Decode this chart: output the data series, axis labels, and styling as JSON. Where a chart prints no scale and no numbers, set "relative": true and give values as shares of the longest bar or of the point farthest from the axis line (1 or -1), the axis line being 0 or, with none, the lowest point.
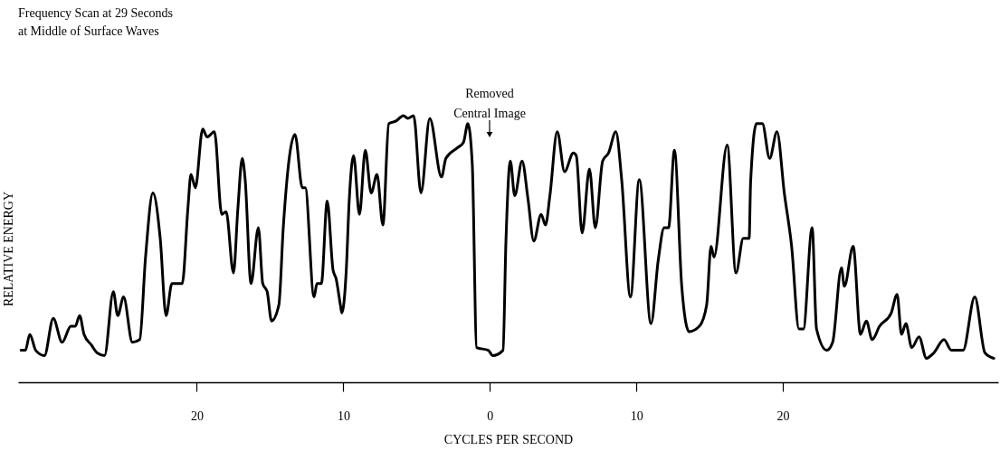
{
  "chart_data": {
    "type": "line",
    "title": "Frequency Scan at 29 Seconds at Middle of Surface Waves",
    "xlabel": "CYCLES PER SECOND",
    "ylabel": "RELATIVE ENERGY",
    "relative": true,
    "color": "#000000",
    "annotations": [
      "Removed Central Image"
    ],
    "xlim": [
      -32.2,
      34.7
    ],
    "xticks": [
      {
        "value": -20,
        "label": "20"
      },
      {
        "value": -10,
        "label": "10"
      },
      0,
      10,
      20
    ],
    "x": [
      -32.0,
      -31.7,
      -31.4,
      -31.0,
      -30.4,
      -29.8,
      -29.2,
      -28.6,
      -28.3,
      -28.0,
      -27.7,
      -27.2,
      -26.8,
      -26.3,
      -25.7,
      -25.4,
      -25.0,
      -24.4,
      -23.9,
      -23.5,
      -23.0,
      -22.5,
      -22.1,
      -21.7,
      -21.0,
      -20.6,
      -20.4,
      -20.1,
      -19.6,
      -19.3,
      -18.8,
      -18.3,
      -18.0,
      -17.5,
      -17.2,
      -16.9,
      -16.7,
      -16.3,
      -15.8,
      -15.5,
      -15.2,
      -14.9,
      -14.4,
      -14.1,
      -13.3,
      -12.8,
      -12.6,
      -12.0,
      -11.8,
      -11.5,
      -11.1,
      -10.7,
      -10.5,
      -10.2,
      -10.1,
      -9.8,
      -9.6,
      -9.3,
      -8.9,
      -8.5,
      -8.1,
      -7.7,
      -7.3,
      -6.9,
      -6.4,
      -5.9,
      -5.6,
      -5.2,
      -4.7,
      -4.1,
      -3.3,
      -3.0,
      -2.2,
      -1.8,
      -1.5,
      -1.2,
      -0.9,
      -0.1,
      0.2,
      0.9,
      1.1,
      1.4,
      1.7,
      2.2,
      2.6,
      3.0,
      3.5,
      3.8,
      4.1,
      4.6,
      5.1,
      5.7,
      5.9,
      6.3,
      6.8,
      7.2,
      7.7,
      8.1,
      8.6,
      9.0,
      9.6,
      10.2,
      11.0,
      11.5,
      11.9,
      12.2,
      12.6,
      13.1,
      13.6,
      14.3,
      14.8,
      15.1,
      15.3,
      16.2,
      16.8,
      17.3,
      17.7,
      17.8,
      18.2,
      18.6,
      19.1,
      19.6,
      20.1,
      20.6,
      21.1,
      21.4,
      22.0,
      22.3,
      23.0,
      23.4,
      24.0,
      24.2,
      24.8,
      25.3,
      25.7,
      26.1,
      26.6,
      27.4,
      27.8,
      28.1,
      28.4,
      28.8,
      29.3,
      29.8,
      30.3,
      31.0,
      31.5,
      32.3,
      33.1,
      33.8,
      34.4
    ],
    "values": [
      0.12,
      0.12,
      0.18,
      0.12,
      0.1,
      0.24,
      0.15,
      0.21,
      0.21,
      0.25,
      0.18,
      0.14,
      0.11,
      0.1,
      0.34,
      0.25,
      0.32,
      0.15,
      0.16,
      0.47,
      0.71,
      0.54,
      0.25,
      0.37,
      0.37,
      0.66,
      0.78,
      0.73,
      0.95,
      0.92,
      0.94,
      0.63,
      0.64,
      0.41,
      0.65,
      0.84,
      0.76,
      0.37,
      0.58,
      0.37,
      0.34,
      0.23,
      0.29,
      0.58,
      0.93,
      0.73,
      0.73,
      0.32,
      0.37,
      0.37,
      0.68,
      0.42,
      0.39,
      0.29,
      0.26,
      0.42,
      0.68,
      0.85,
      0.63,
      0.87,
      0.71,
      0.78,
      0.59,
      0.97,
      0.98,
      1.0,
      0.99,
      1.0,
      0.71,
      0.99,
      0.77,
      0.84,
      0.88,
      0.9,
      0.97,
      0.82,
      0.13,
      0.12,
      0.1,
      0.12,
      0.53,
      0.83,
      0.7,
      0.83,
      0.69,
      0.53,
      0.63,
      0.59,
      0.7,
      0.94,
      0.79,
      0.86,
      0.85,
      0.56,
      0.8,
      0.58,
      0.83,
      0.86,
      0.94,
      0.76,
      0.32,
      0.76,
      0.22,
      0.46,
      0.58,
      0.58,
      0.87,
      0.36,
      0.19,
      0.21,
      0.29,
      0.51,
      0.47,
      0.89,
      0.41,
      0.54,
      0.54,
      0.75,
      0.97,
      0.97,
      0.84,
      0.94,
      0.71,
      0.51,
      0.2,
      0.2,
      0.58,
      0.2,
      0.12,
      0.15,
      0.43,
      0.36,
      0.51,
      0.18,
      0.23,
      0.16,
      0.21,
      0.26,
      0.33,
      0.18,
      0.22,
      0.13,
      0.17,
      0.09,
      0.11,
      0.16,
      0.12,
      0.12,
      0.32,
      0.11,
      0.09
    ]
  }
}
